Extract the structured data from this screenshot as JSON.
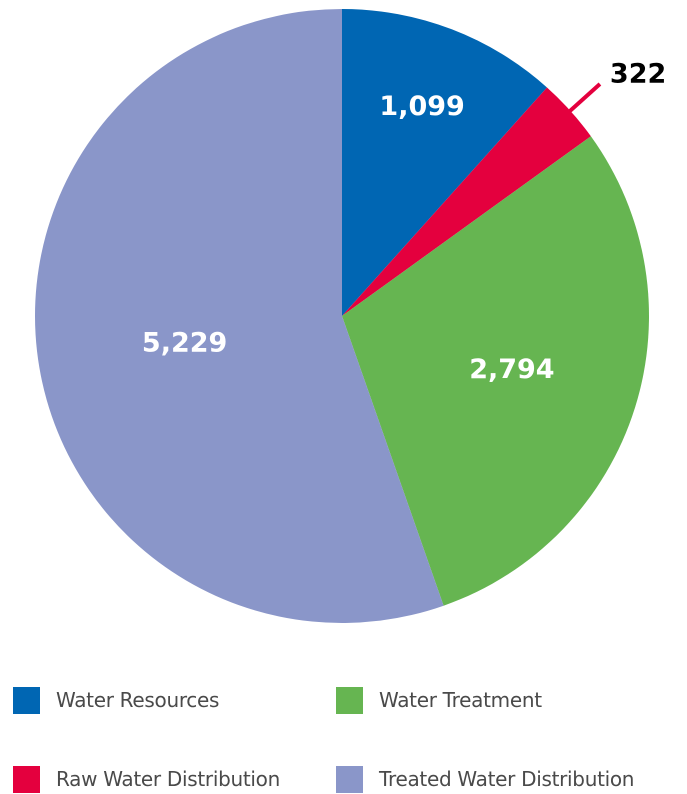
{
  "chart_data": {
    "type": "pie",
    "title": "",
    "slices": [
      {
        "label": "Water Resources",
        "value": 1099,
        "display": "1,099",
        "color": "#0066b3"
      },
      {
        "label": "Raw Water Distribution",
        "value": 322,
        "display": "322",
        "color": "#e4003e"
      },
      {
        "label": "Water Treatment",
        "value": 2794,
        "display": "2,794",
        "color": "#66b551"
      },
      {
        "label": "Treated Water Distribution",
        "value": 5229,
        "display": "5,229",
        "color": "#8a96c9"
      }
    ],
    "start_angle": "12 o'clock",
    "direction": "clockwise",
    "legend_position": "bottom"
  }
}
